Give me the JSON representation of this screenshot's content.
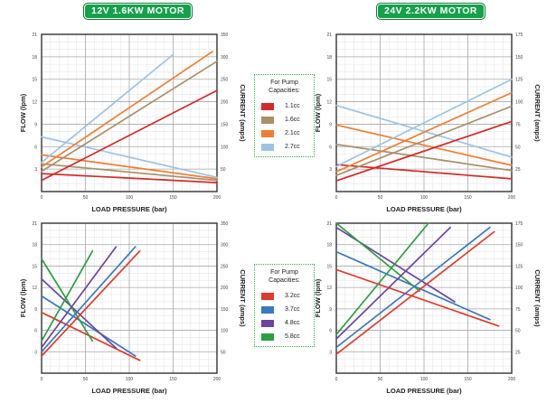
{
  "header": {
    "left_badge": "12V 1.6KW MOTOR",
    "right_badge": "24V 2.2KW MOTOR"
  },
  "legends": [
    {
      "title": "For Pump Capacities:",
      "items": [
        {
          "label": "1.1cc",
          "color": "#d42a2a"
        },
        {
          "label": "1.6cc",
          "color": "#a8906a"
        },
        {
          "label": "2.1cc",
          "color": "#ee7e34"
        },
        {
          "label": "2.7cc",
          "color": "#9cc3e6"
        }
      ]
    },
    {
      "title": "For Pump Capacities:",
      "items": [
        {
          "label": "3.2cc",
          "color": "#e03a2a"
        },
        {
          "label": "3.7cc",
          "color": "#3a78c0"
        },
        {
          "label": "4.8cc",
          "color": "#6b45a0"
        },
        {
          "label": "5.8cc",
          "color": "#2aa040"
        }
      ]
    }
  ],
  "chart_data": [
    {
      "type": "line",
      "xlabel": "LOAD PRESSURE (bar)",
      "ylabel": "FLOW (lpm)",
      "y2label": "CURRENT (amps)",
      "xlim": [
        0,
        200
      ],
      "ylim": [
        0,
        21
      ],
      "y2lim": [
        0,
        350
      ],
      "xticks": [
        0,
        50,
        100,
        150,
        200
      ],
      "yticks": [
        3,
        6,
        9,
        12,
        15,
        18,
        21
      ],
      "y2ticks": [
        50,
        100,
        150,
        200,
        250,
        300,
        350
      ],
      "grid": true,
      "series": [
        {
          "name": "1.1cc",
          "kind": "flow",
          "color": "#d42a2a",
          "x": [
            0,
            200
          ],
          "y": [
            2.4,
            1.2
          ]
        },
        {
          "name": "1.6cc",
          "kind": "flow",
          "color": "#a8906a",
          "x": [
            0,
            200
          ],
          "y": [
            3.7,
            1.5
          ]
        },
        {
          "name": "2.1cc",
          "kind": "flow",
          "color": "#ee7e34",
          "x": [
            0,
            200
          ],
          "y": [
            4.9,
            1.7
          ]
        },
        {
          "name": "2.7cc",
          "kind": "flow",
          "color": "#9cc3e6",
          "x": [
            0,
            200
          ],
          "y": [
            7.3,
            1.9
          ]
        },
        {
          "name": "1.1cc",
          "kind": "current",
          "color": "#d42a2a",
          "x": [
            0,
            200
          ],
          "y": [
            25,
            225
          ]
        },
        {
          "name": "1.6cc",
          "kind": "current",
          "color": "#a8906a",
          "x": [
            0,
            200
          ],
          "y": [
            45,
            290
          ]
        },
        {
          "name": "2.1cc",
          "kind": "current",
          "color": "#ee7e34",
          "x": [
            0,
            195
          ],
          "y": [
            55,
            312
          ]
        },
        {
          "name": "2.7cc",
          "kind": "current",
          "color": "#9cc3e6",
          "x": [
            0,
            150
          ],
          "y": [
            65,
            305
          ]
        }
      ]
    },
    {
      "type": "line",
      "xlabel": "LOAD PRESSURE (bar)",
      "ylabel": "FLOW (lpm)",
      "y2label": "CURRENT (amps)",
      "xlim": [
        0,
        200
      ],
      "ylim": [
        0,
        21
      ],
      "y2lim": [
        0,
        175
      ],
      "xticks": [
        0,
        50,
        100,
        150,
        200
      ],
      "yticks": [
        3,
        6,
        9,
        12,
        15,
        18,
        21
      ],
      "y2ticks": [
        25,
        50,
        75,
        100,
        125,
        150,
        175
      ],
      "grid": true,
      "series": [
        {
          "name": "1.1cc",
          "kind": "flow",
          "color": "#d42a2a",
          "x": [
            0,
            200
          ],
          "y": [
            3.6,
            1.7
          ]
        },
        {
          "name": "1.6cc",
          "kind": "flow",
          "color": "#a8906a",
          "x": [
            0,
            200
          ],
          "y": [
            6.3,
            2.8
          ]
        },
        {
          "name": "2.1cc",
          "kind": "flow",
          "color": "#ee7e34",
          "x": [
            0,
            200
          ],
          "y": [
            8.9,
            3.5
          ]
        },
        {
          "name": "2.7cc",
          "kind": "flow",
          "color": "#9cc3e6",
          "x": [
            0,
            200
          ],
          "y": [
            11.5,
            4.6
          ]
        },
        {
          "name": "1.1cc",
          "kind": "current",
          "color": "#d42a2a",
          "x": [
            0,
            200
          ],
          "y": [
            12,
            78
          ]
        },
        {
          "name": "1.6cc",
          "kind": "current",
          "color": "#a8906a",
          "x": [
            0,
            200
          ],
          "y": [
            18,
            95
          ]
        },
        {
          "name": "2.1cc",
          "kind": "current",
          "color": "#ee7e34",
          "x": [
            0,
            200
          ],
          "y": [
            22,
            110
          ]
        },
        {
          "name": "2.7cc",
          "kind": "current",
          "color": "#9cc3e6",
          "x": [
            0,
            200
          ],
          "y": [
            28,
            125
          ]
        }
      ]
    },
    {
      "type": "line",
      "xlabel": "LOAD PRESSURE (bar)",
      "ylabel": "FLOW (lpm)",
      "y2label": "CURRENT (amps)",
      "xlim": [
        0,
        200
      ],
      "ylim": [
        0,
        21
      ],
      "y2lim": [
        0,
        350
      ],
      "xticks": [
        0,
        50,
        100,
        150,
        200
      ],
      "yticks": [
        3,
        6,
        9,
        12,
        15,
        18,
        21
      ],
      "y2ticks": [
        50,
        100,
        150,
        200,
        250,
        300,
        350
      ],
      "grid": true,
      "series": [
        {
          "name": "3.2cc",
          "kind": "flow",
          "color": "#e03a2a",
          "x": [
            0,
            112
          ],
          "y": [
            8.5,
            1.8
          ]
        },
        {
          "name": "3.7cc",
          "kind": "flow",
          "color": "#3a78c0",
          "x": [
            0,
            107
          ],
          "y": [
            10.8,
            2.4
          ]
        },
        {
          "name": "4.8cc",
          "kind": "flow",
          "color": "#6b45a0",
          "x": [
            0,
            85
          ],
          "y": [
            13.2,
            3.5
          ]
        },
        {
          "name": "5.8cc",
          "kind": "flow",
          "color": "#2aa040",
          "x": [
            0,
            58
          ],
          "y": [
            16.0,
            4.5
          ]
        },
        {
          "name": "3.2cc",
          "kind": "current",
          "color": "#e03a2a",
          "x": [
            0,
            112
          ],
          "y": [
            40,
            285
          ]
        },
        {
          "name": "3.7cc",
          "kind": "current",
          "color": "#3a78c0",
          "x": [
            0,
            107
          ],
          "y": [
            50,
            295
          ]
        },
        {
          "name": "4.8cc",
          "kind": "current",
          "color": "#6b45a0",
          "x": [
            0,
            85
          ],
          "y": [
            60,
            295
          ]
        },
        {
          "name": "5.8cc",
          "kind": "current",
          "color": "#2aa040",
          "x": [
            0,
            58
          ],
          "y": [
            75,
            285
          ]
        }
      ]
    },
    {
      "type": "line",
      "xlabel": "LOAD PRESSURE (bar)",
      "ylabel": "FLOW (lpm)",
      "y2label": "CURRENT (amps)",
      "xlim": [
        0,
        200
      ],
      "ylim": [
        0,
        21
      ],
      "y2lim": [
        0,
        175
      ],
      "xticks": [
        0,
        50,
        100,
        150,
        200
      ],
      "yticks": [
        3,
        6,
        9,
        12,
        15,
        18,
        21
      ],
      "y2ticks": [
        25,
        50,
        75,
        100,
        125,
        150,
        175
      ],
      "grid": true,
      "series": [
        {
          "name": "3.2cc",
          "kind": "flow",
          "color": "#e03a2a",
          "x": [
            0,
            185
          ],
          "y": [
            14.5,
            6.6
          ]
        },
        {
          "name": "3.7cc",
          "kind": "flow",
          "color": "#3a78c0",
          "x": [
            0,
            175
          ],
          "y": [
            17.0,
            7.5
          ]
        },
        {
          "name": "4.8cc",
          "kind": "flow",
          "color": "#6b45a0",
          "x": [
            0,
            135
          ],
          "y": [
            20.4,
            10.0
          ]
        },
        {
          "name": "5.8cc",
          "kind": "flow",
          "color": "#2aa040",
          "x": [
            0,
            95
          ],
          "y": [
            21.0,
            11.5
          ]
        },
        {
          "name": "3.2cc",
          "kind": "current",
          "color": "#e03a2a",
          "x": [
            0,
            180
          ],
          "y": [
            22,
            165
          ]
        },
        {
          "name": "3.7cc",
          "kind": "current",
          "color": "#3a78c0",
          "x": [
            0,
            175
          ],
          "y": [
            30,
            170
          ]
        },
        {
          "name": "4.8cc",
          "kind": "current",
          "color": "#6b45a0",
          "x": [
            0,
            130
          ],
          "y": [
            40,
            170
          ]
        },
        {
          "name": "5.8cc",
          "kind": "current",
          "color": "#2aa040",
          "x": [
            0,
            105
          ],
          "y": [
            45,
            175
          ]
        }
      ]
    }
  ]
}
